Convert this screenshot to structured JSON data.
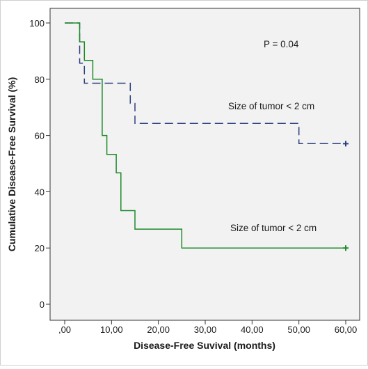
{
  "chart_data": {
    "type": "line",
    "title": "",
    "xlabel": "Disease-Free Suvival (months)",
    "ylabel": "Cumulative Disease-Free Survival (%)",
    "xlim": [
      0,
      60
    ],
    "ylim": [
      0,
      100
    ],
    "x_ticks": [
      0,
      10,
      20,
      30,
      40,
      50,
      60
    ],
    "x_tick_labels": [
      ",00",
      "10,00",
      "20,00",
      "30,00",
      "40,00",
      "50,00",
      "60,00"
    ],
    "y_ticks": [
      0,
      20,
      40,
      60,
      80,
      100
    ],
    "y_tick_labels": [
      "0",
      "20",
      "40",
      "60",
      "80",
      "100"
    ],
    "grid": false,
    "annotations": [
      "P = 0.04",
      "Size of tumor < 2 cm",
      "Size of tumor < 2 cm"
    ],
    "series": [
      {
        "color": "#2c3f80",
        "style": "dashed",
        "step": true,
        "points": [
          [
            0,
            100
          ],
          [
            3.2,
            100
          ],
          [
            3.2,
            85.7
          ],
          [
            4.2,
            85.7
          ],
          [
            4.2,
            78.6
          ],
          [
            14,
            78.6
          ],
          [
            14,
            71.4
          ],
          [
            15,
            71.4
          ],
          [
            15,
            64.3
          ],
          [
            50,
            64.3
          ],
          [
            50,
            57.1
          ],
          [
            60,
            57.1
          ]
        ],
        "censor": [
          [
            60,
            57.1
          ]
        ]
      },
      {
        "color": "#1e8a2a",
        "style": "solid",
        "step": true,
        "points": [
          [
            0,
            100
          ],
          [
            3.2,
            100
          ],
          [
            3.2,
            93.3
          ],
          [
            4.2,
            93.3
          ],
          [
            4.2,
            86.7
          ],
          [
            6,
            86.7
          ],
          [
            6,
            80
          ],
          [
            8,
            80
          ],
          [
            8,
            60
          ],
          [
            9,
            60
          ],
          [
            9,
            53.3
          ],
          [
            11,
            53.3
          ],
          [
            11,
            46.7
          ],
          [
            12,
            46.7
          ],
          [
            12,
            33.3
          ],
          [
            15,
            33.3
          ],
          [
            15,
            26.7
          ],
          [
            25,
            26.7
          ],
          [
            25,
            20
          ],
          [
            60,
            20
          ]
        ],
        "censor": [
          [
            60,
            20
          ]
        ]
      }
    ]
  }
}
